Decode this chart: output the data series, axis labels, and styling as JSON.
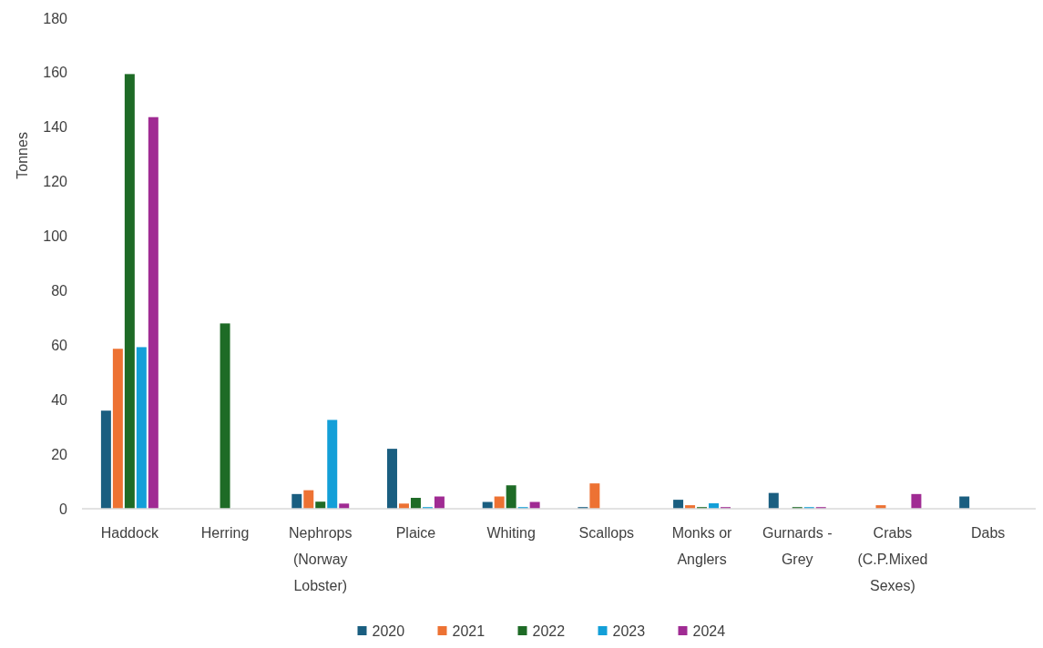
{
  "chart_data": {
    "type": "bar",
    "ylabel": "Tonnes",
    "categories": [
      "Haddock",
      "Herring",
      "Nephrops (Norway Lobster)",
      "Plaice",
      "Whiting",
      "Scallops",
      "Monks or Anglers",
      "Gurnards - Grey",
      "Crabs (C.P.Mixed Sexes)",
      "Dabs"
    ],
    "series": [
      {
        "name": "2020",
        "color": "#1a5e80",
        "values": [
          36,
          null,
          5.4,
          22,
          2.5,
          0.6,
          3.3,
          5.8,
          null,
          4.5
        ]
      },
      {
        "name": "2021",
        "color": "#ed7233",
        "values": [
          58.7,
          null,
          6.8,
          1.9,
          4.5,
          9.3,
          1.3,
          null,
          1.3,
          null
        ]
      },
      {
        "name": "2022",
        "color": "#1e6b26",
        "values": [
          159.5,
          68,
          2.6,
          4,
          8.6,
          null,
          0.6,
          0.6,
          null,
          null
        ]
      },
      {
        "name": "2023",
        "color": "#139fd8",
        "values": [
          59.3,
          null,
          32.6,
          0.6,
          0.6,
          null,
          2,
          0.6,
          null,
          null
        ]
      },
      {
        "name": "2024",
        "color": "#a02b93",
        "values": [
          143.7,
          null,
          1.9,
          4.5,
          2.5,
          null,
          0.6,
          0.6,
          5.4,
          null
        ]
      }
    ],
    "ylim": [
      0,
      180
    ],
    "yticks": [
      0,
      20,
      40,
      60,
      80,
      100,
      120,
      140,
      160,
      180
    ],
    "grid": false,
    "legend": "bottom"
  }
}
